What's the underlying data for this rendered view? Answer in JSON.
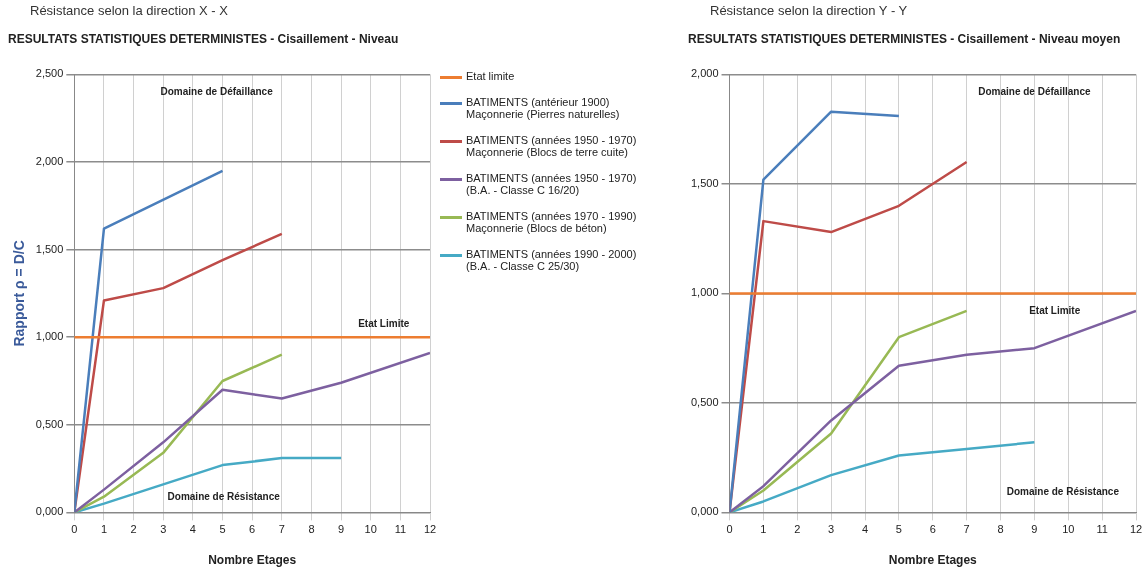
{
  "chart_data": [
    {
      "type": "line",
      "subtitle": "Résistance selon la direction X - X",
      "title": "RESULTATS STATISTIQUES DETERMINISTES - Cisaillement - Niveau",
      "xlabel": "Nombre Etages",
      "ylabel": "Rapport ρ = D/C",
      "xlim": [
        0,
        12
      ],
      "xticks": [
        0,
        1,
        2,
        3,
        4,
        5,
        6,
        7,
        8,
        9,
        10,
        11,
        12
      ],
      "ylim": [
        0,
        2.5
      ],
      "yticks": [
        {
          "value": 0,
          "label": "0,000"
        },
        {
          "value": 0.5,
          "label": "0,500"
        },
        {
          "value": 1,
          "label": "1,000"
        },
        {
          "value": 1.5,
          "label": "1,500"
        },
        {
          "value": 2,
          "label": "2,000"
        },
        {
          "value": 2.5,
          "label": "2,500"
        }
      ],
      "grid": true,
      "legend": "right",
      "marker": "none",
      "line_style": "solid",
      "series": [
        {
          "name": "Etat limite",
          "color": "#ed7d31",
          "x": [
            0,
            12
          ],
          "values": [
            1,
            1
          ]
        },
        {
          "name": "BATIMENTS (antérieur 1900) Maçonnerie (Pierres naturelles)",
          "color": "#4a7ebb",
          "x": [
            0,
            1,
            5
          ],
          "values": [
            0,
            1.62,
            1.95
          ]
        },
        {
          "name": "BATIMENTS (années 1950 - 1970) Maçonnerie (Blocs de terre cuite)",
          "color": "#be4b48",
          "x": [
            0,
            1,
            3,
            5,
            7
          ],
          "values": [
            0,
            1.21,
            1.28,
            1.44,
            1.59
          ]
        },
        {
          "name": "BATIMENTS (années 1950 - 1970) (B.A. - Classe C 16/20)",
          "color": "#7d60a0",
          "x": [
            0,
            1,
            3,
            5,
            7,
            9,
            12
          ],
          "values": [
            0,
            0.13,
            0.4,
            0.7,
            0.65,
            0.74,
            0.91
          ]
        },
        {
          "name": "BATIMENTS (années 1970 - 1990) Maçonnerie (Blocs de béton)",
          "color": "#98b954",
          "x": [
            0,
            1,
            3,
            5,
            7
          ],
          "values": [
            0,
            0.09,
            0.34,
            0.75,
            0.9
          ]
        },
        {
          "name": "BATIMENTS (années 1990 - 2000) (B.A. - Classe C 25/30)",
          "color": "#46aac5",
          "x": [
            0,
            1,
            3,
            5,
            7,
            9
          ],
          "values": [
            0,
            0.05,
            0.16,
            0.27,
            0.31,
            0.31
          ]
        }
      ],
      "annotations": [
        "Domaine de Défaillance",
        "Etat Limite",
        "Domaine de Résistance"
      ]
    },
    {
      "type": "line",
      "subtitle": "Résistance selon la direction Y - Y",
      "title": "RESULTATS STATISTIQUES DETERMINISTES - Cisaillement - Niveau moyen",
      "xlabel": "Nombre Etages",
      "xlim": [
        0,
        12
      ],
      "xticks": [
        0,
        1,
        2,
        3,
        4,
        5,
        6,
        7,
        8,
        9,
        10,
        11,
        12
      ],
      "ylim": [
        0,
        2
      ],
      "yticks": [
        {
          "value": 0,
          "label": "0,000"
        },
        {
          "value": 0.5,
          "label": "0,500"
        },
        {
          "value": 1,
          "label": "1,000"
        },
        {
          "value": 1.5,
          "label": "1,500"
        },
        {
          "value": 2,
          "label": "2,000"
        }
      ],
      "grid": true,
      "marker": "none",
      "line_style": "solid",
      "series": [
        {
          "color": "#ed7d31",
          "x": [
            0,
            12
          ],
          "values": [
            1,
            1
          ]
        },
        {
          "color": "#4a7ebb",
          "x": [
            0,
            1,
            3,
            5
          ],
          "values": [
            0,
            1.52,
            1.83,
            1.81
          ]
        },
        {
          "color": "#be4b48",
          "x": [
            0,
            1,
            3,
            5,
            7
          ],
          "values": [
            0,
            1.33,
            1.28,
            1.4,
            1.6
          ]
        },
        {
          "color": "#7d60a0",
          "x": [
            0,
            1,
            3,
            5,
            7,
            9,
            12
          ],
          "values": [
            0,
            0.12,
            0.42,
            0.67,
            0.72,
            0.75,
            0.92
          ]
        },
        {
          "color": "#98b954",
          "x": [
            0,
            1,
            3,
            5,
            7
          ],
          "values": [
            0,
            0.1,
            0.36,
            0.8,
            0.92
          ]
        },
        {
          "color": "#46aac5",
          "x": [
            0,
            1,
            3,
            5,
            7,
            9
          ],
          "values": [
            0,
            0.05,
            0.17,
            0.26,
            0.29,
            0.32
          ]
        }
      ],
      "annotations": [
        "Domaine de Défaillance",
        "Etat Limite",
        "Domaine de Résistance"
      ]
    }
  ]
}
